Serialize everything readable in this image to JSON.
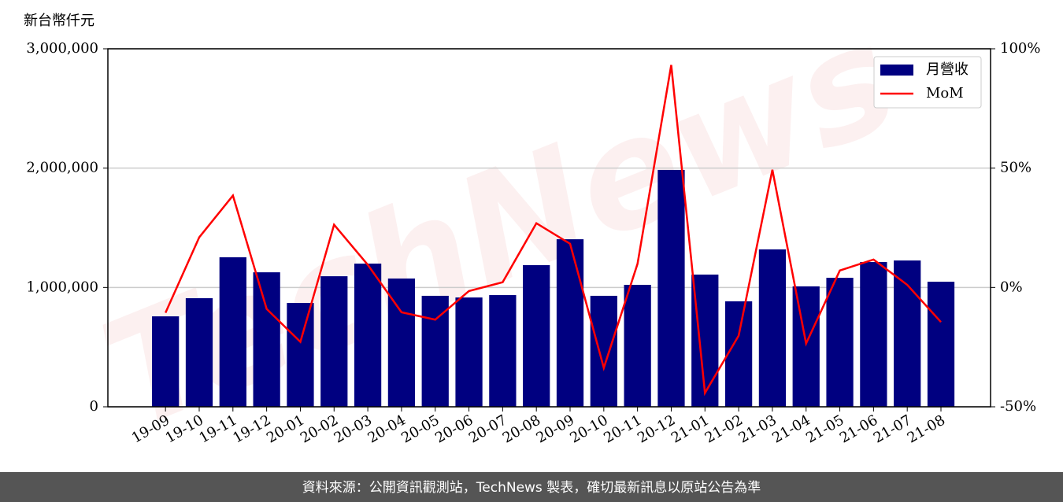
{
  "chart_data": {
    "type": "bar-line",
    "ylabel": "新台幣仟元",
    "watermark": "TechNews",
    "source": "資料來源：公開資訊觀測站，TechNews 製表，確切最新訊息以原站公告為準",
    "categories": [
      "19-09",
      "19-10",
      "19-11",
      "19-12",
      "20-01",
      "20-02",
      "20-03",
      "20-04",
      "20-05",
      "20-06",
      "20-07",
      "20-08",
      "20-09",
      "20-10",
      "20-11",
      "20-12",
      "21-01",
      "21-02",
      "21-03",
      "21-04",
      "21-05",
      "21-06",
      "21-07",
      "21-08"
    ],
    "series": [
      {
        "name": "月營收",
        "type": "bar",
        "color": "#000080",
        "values": [
          758000,
          910000,
          1253000,
          1127000,
          870000,
          1094000,
          1200000,
          1075000,
          930000,
          916000,
          936000,
          1187000,
          1404000,
          930000,
          1022000,
          1985000,
          1108000,
          884000,
          1319000,
          1009000,
          1081000,
          1213000,
          1226000,
          1048000
        ]
      },
      {
        "name": "MoM",
        "type": "line",
        "color": "#ff0000",
        "axis": "y2",
        "values": [
          -10.6,
          21,
          38.5,
          -9,
          -22.8,
          26.3,
          9.5,
          -10.4,
          -13.5,
          -1.5,
          2.2,
          26.9,
          18.3,
          -33.7,
          9.9,
          93.2,
          -44.2,
          -20.2,
          49.3,
          -23.5,
          7.1,
          11.7,
          1.1,
          -14.5
        ]
      }
    ],
    "ylim": [
      0,
      3000000
    ],
    "yticks": [
      0,
      {
        "value": 1000000,
        "label": "1,000,000"
      },
      {
        "value": 2000000,
        "label": "2,000,000"
      },
      {
        "value": 3000000,
        "label": "3,000,000"
      }
    ],
    "y2lim": [
      -50,
      100
    ],
    "y2ticks": [
      {
        "value": -50,
        "label": "-50%"
      },
      {
        "value": 0,
        "label": "0%"
      },
      {
        "value": 50,
        "label": "50%"
      },
      {
        "value": 100,
        "label": "100%"
      }
    ],
    "grid": true,
    "legend": "upper right"
  }
}
